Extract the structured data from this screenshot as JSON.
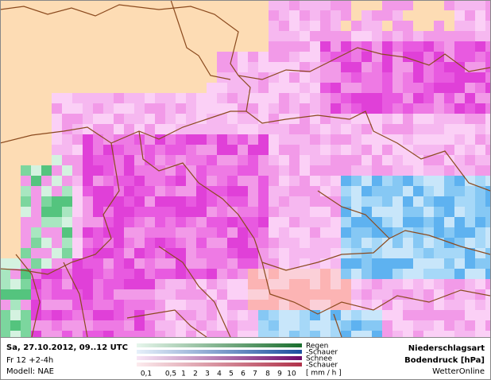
{
  "header": {
    "time": "Sa, 27.10.2012, 09..12 UTC",
    "forecast": "Fr 12 +2-4h",
    "model": "Modell: NAE"
  },
  "legend": {
    "types": [
      "Regen",
      "-Schauer",
      "Schnee",
      "-Schauer"
    ],
    "scale": [
      "0,1",
      "0,5",
      "1",
      "2",
      "3",
      "4",
      "5",
      "6",
      "7",
      "8",
      "9",
      "10"
    ],
    "unit": "[ mm / h ]"
  },
  "info": {
    "title": "Niederschlagsart",
    "subtitle": "Bodendruck [hPa]",
    "source": "WetterOnline"
  }
}
